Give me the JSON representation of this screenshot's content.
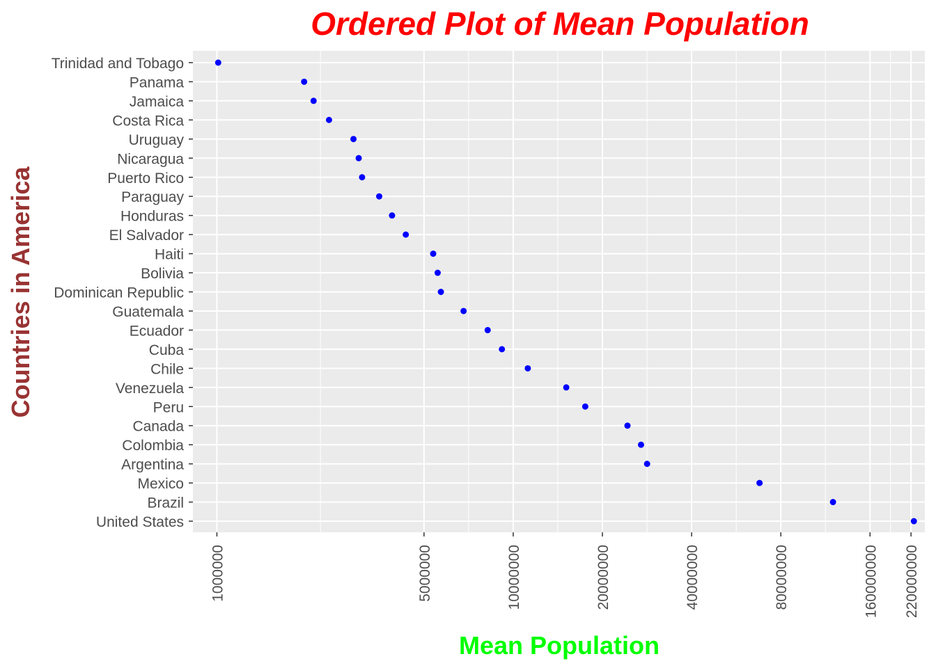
{
  "chart_data": {
    "type": "scatter",
    "title": "Ordered Plot of Mean Population",
    "xlabel": "Mean Population",
    "ylabel": "Countries in America",
    "x_scale": "log10",
    "xlim": [
      830000,
      245000000
    ],
    "x_ticks": [
      1000000,
      5000000,
      10000000,
      20000000,
      40000000,
      80000000,
      160000000,
      220000000
    ],
    "x_tick_labels": [
      "1000000",
      "5000000",
      "10000000",
      "20000000",
      "40000000",
      "80000000",
      "160000000",
      "220000000"
    ],
    "categories": [
      "Trinidad and Tobago",
      "Panama",
      "Jamaica",
      "Costa Rica",
      "Uruguay",
      "Nicaragua",
      "Puerto Rico",
      "Paraguay",
      "Honduras",
      "El Salvador",
      "Haiti",
      "Bolivia",
      "Dominican Republic",
      "Guatemala",
      "Ecuador",
      "Cuba",
      "Chile",
      "Venezuela",
      "Peru",
      "Canada",
      "Colombia",
      "Argentina",
      "Mexico",
      "Brazil",
      "United States"
    ],
    "values": [
      1010000,
      1970000,
      2120000,
      2390000,
      2890000,
      3010000,
      3090000,
      3530000,
      3900000,
      4340000,
      5370000,
      5560000,
      5700000,
      6800000,
      8200000,
      9160000,
      11200000,
      15100000,
      17500000,
      24300000,
      27000000,
      28300000,
      67800000,
      120000000,
      225000000
    ],
    "grid": true,
    "legend": "none",
    "colors": {
      "point": "#0000ff",
      "panel": "#ebebeb",
      "grid": "#ffffff",
      "title": "#ff0000",
      "xlabel": "#00ff00",
      "ylabel": "#993333",
      "tick": "#4d4d4d"
    }
  }
}
